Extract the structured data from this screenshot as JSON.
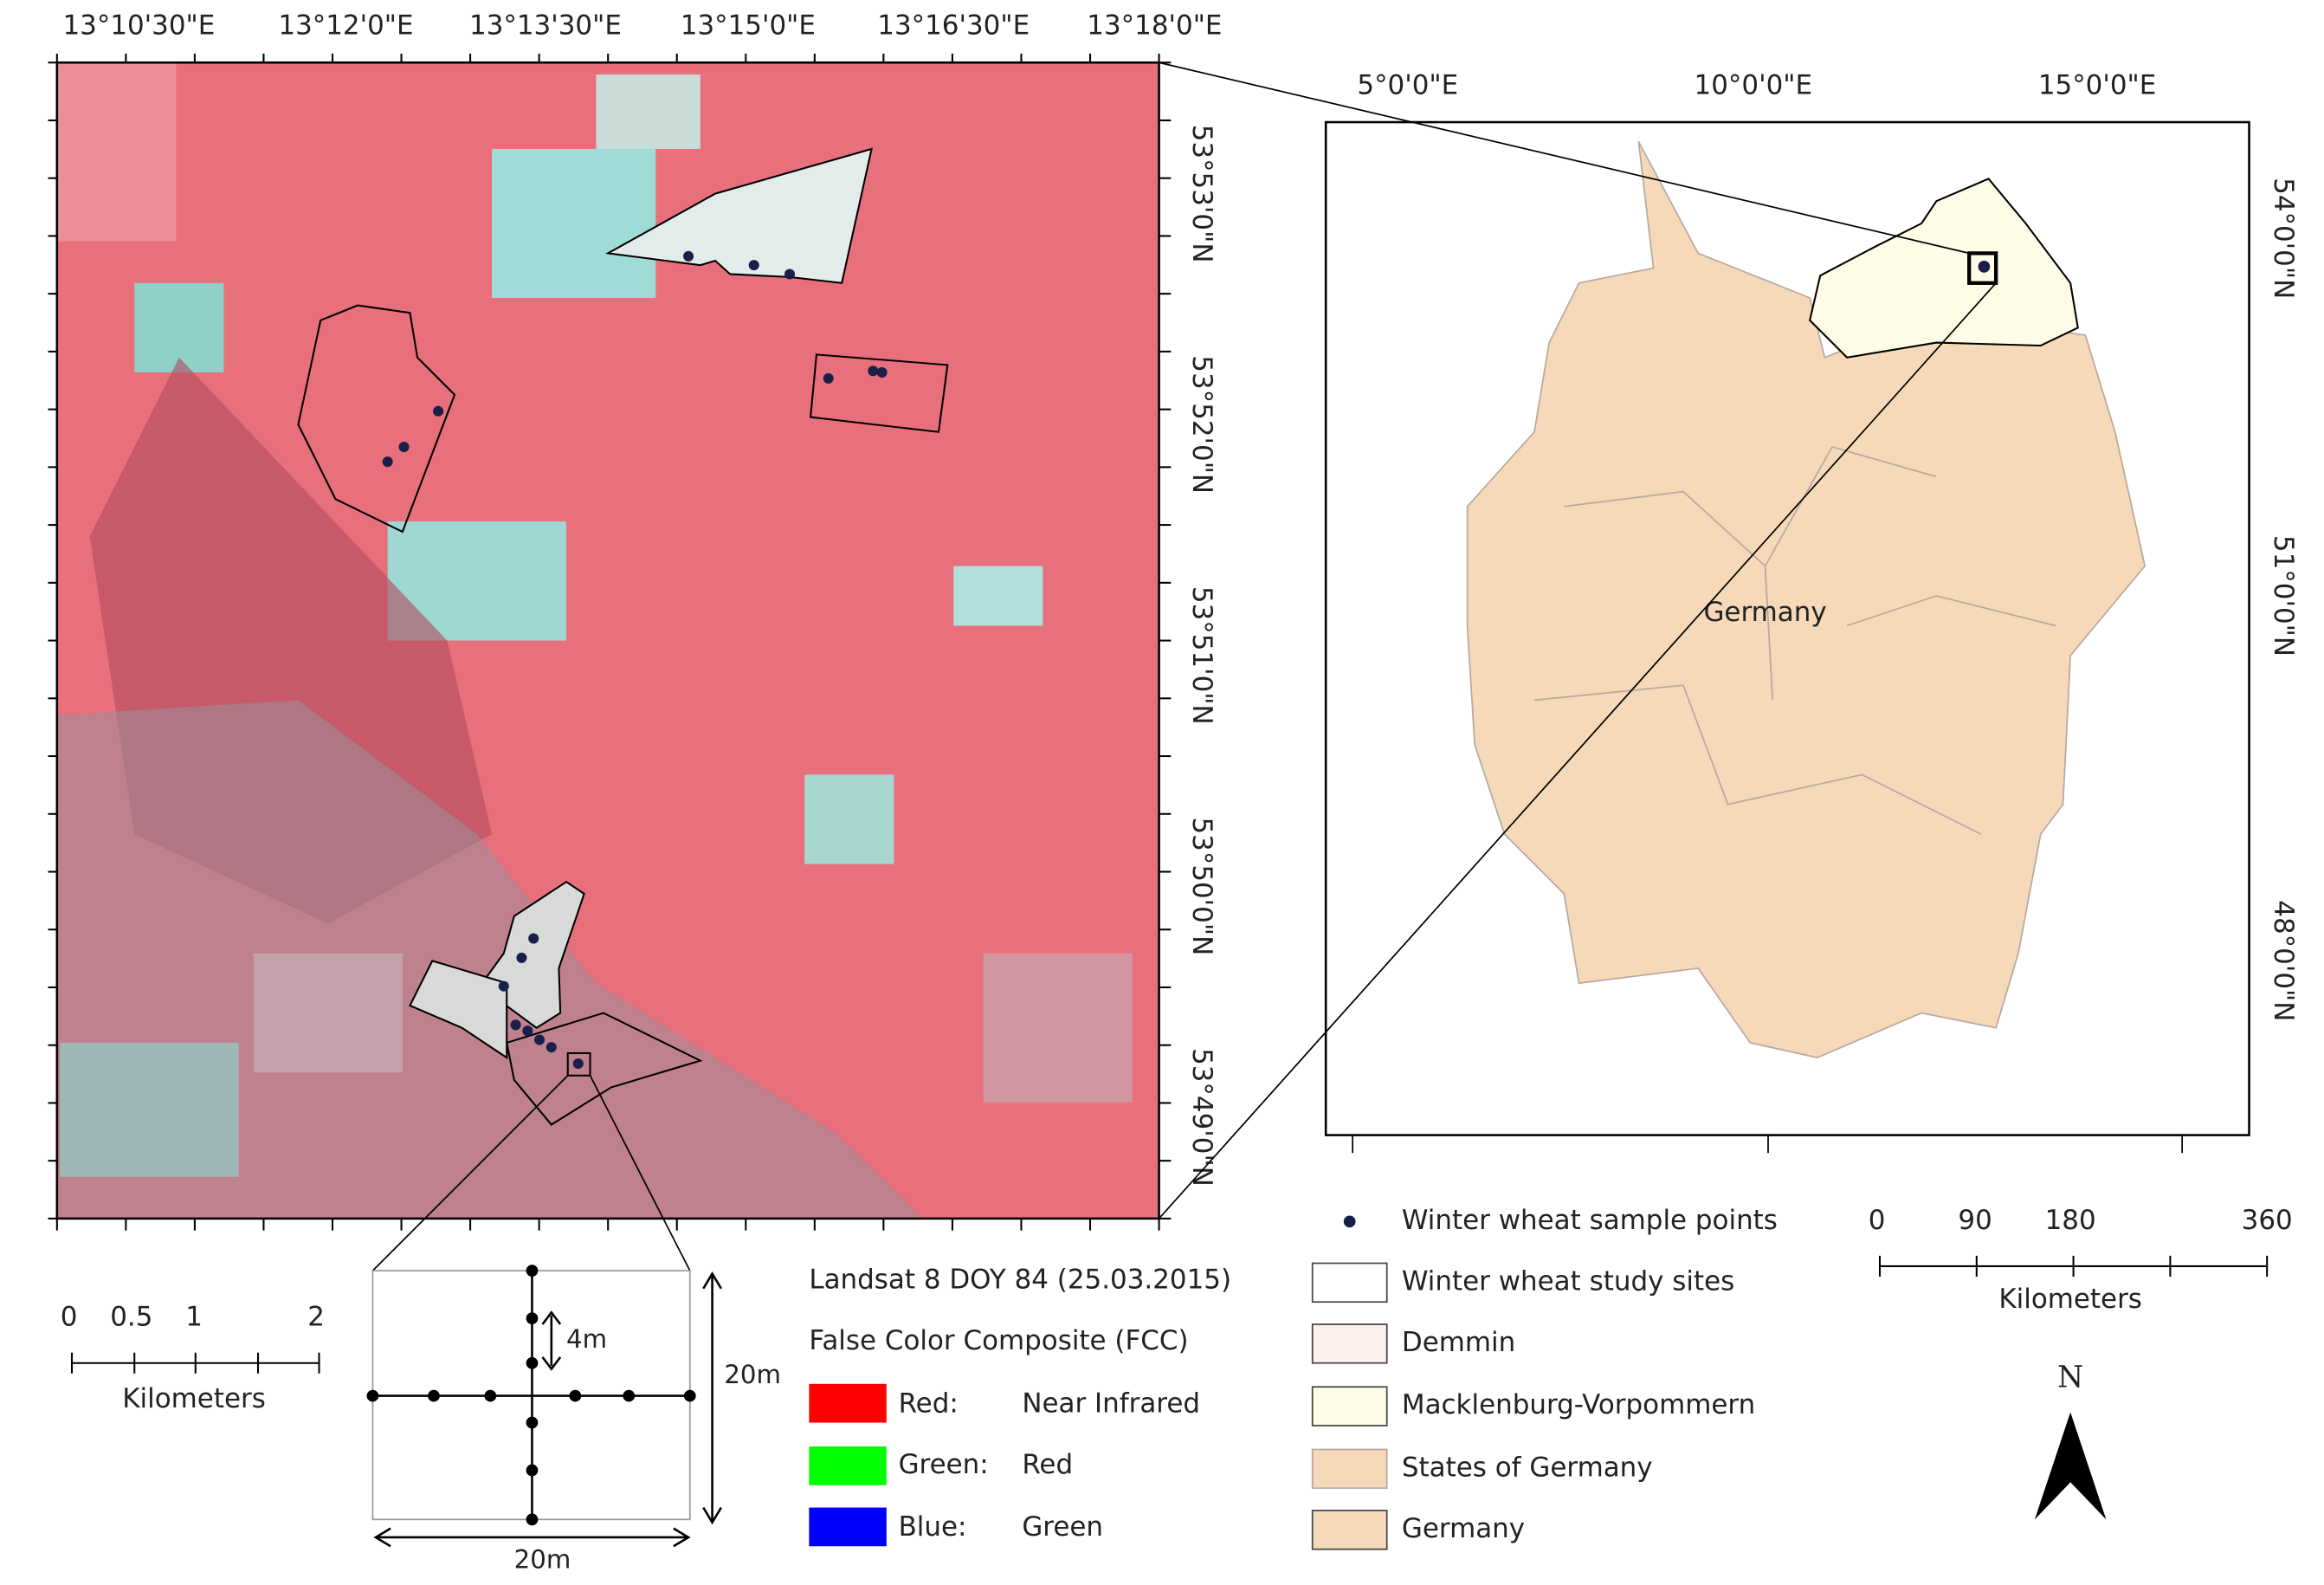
{
  "satellite_map": {
    "x_labels": [
      "13°10'30\"E",
      "13°12'0\"E",
      "13°13'30\"E",
      "13°15'0\"E",
      "13°16'30\"E",
      "13°18'0\"E"
    ],
    "y_labels": [
      "53°53'0\"N",
      "53°52'0\"N",
      "53°51'0\"N",
      "53°50'0\"N",
      "53°49'0\"N"
    ]
  },
  "overview_map": {
    "x_labels": [
      "5°0'0\"E",
      "10°0'0\"E",
      "15°0'0\"E"
    ],
    "y_labels": [
      "54°0'0\"N",
      "51°0'0\"N",
      "48°0'0\"N"
    ],
    "country_label": "Germany"
  },
  "scale_bar_left": {
    "labels": [
      "0",
      "0.5",
      "1",
      "2"
    ],
    "unit": "Kilometers"
  },
  "scale_bar_right": {
    "labels": [
      "0",
      "90",
      "180",
      "360"
    ],
    "unit": "Kilometers"
  },
  "plot_diagram": {
    "spacing": "4m",
    "height": "20m",
    "width": "20m"
  },
  "image_legend": {
    "title": "Landsat 8 DOY 84 (25.03.2015)",
    "subtitle": "False Color Composite (FCC)",
    "bands": [
      {
        "channel": "Red:",
        "band": "Near Infrared"
      },
      {
        "channel": "Green:",
        "band": "Red"
      },
      {
        "channel": "Blue:",
        "band": "Green"
      }
    ]
  },
  "legend": {
    "items": [
      "Winter wheat sample points",
      "Winter wheat study sites",
      "Demmin",
      "Macklenburg-Vorpommern",
      "States of Germany",
      "Germany"
    ]
  },
  "north_arrow": "N"
}
